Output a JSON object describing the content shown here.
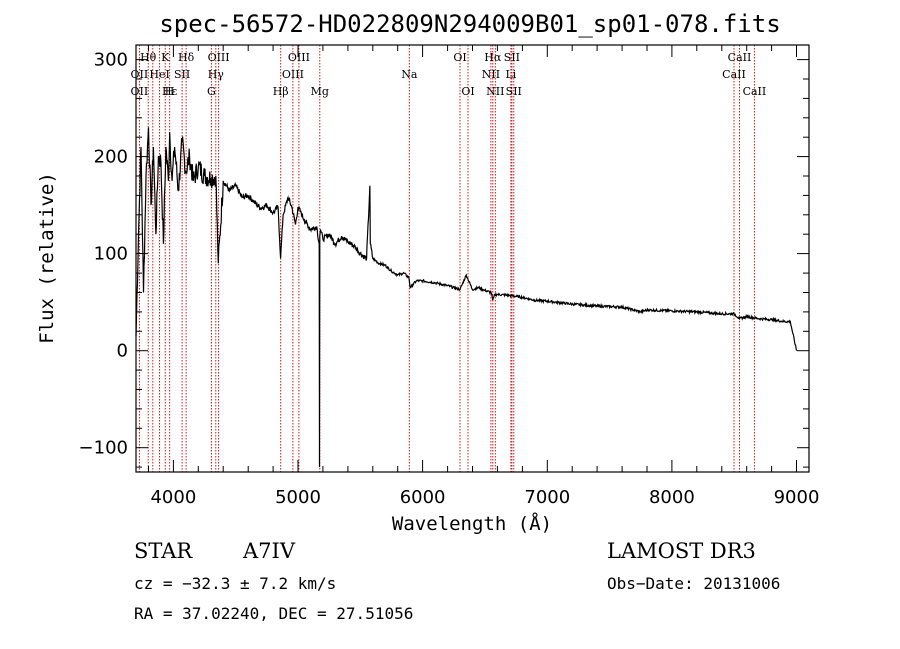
{
  "chart_data": {
    "type": "line",
    "title": "spec-56572-HD022809N294009B01_sp01-078.fits",
    "xlabel": "Wavelength (Å)",
    "ylabel": "Flux (relative)",
    "xlim": [
      3700,
      9100
    ],
    "ylim": [
      -125,
      315
    ],
    "xticks": [
      4000,
      5000,
      6000,
      7000,
      8000,
      9000
    ],
    "yticks": [
      -100,
      0,
      100,
      200,
      300
    ],
    "grid": false,
    "series": [
      {
        "name": "spectrum",
        "x": [
          3700,
          3720,
          3740,
          3760,
          3780,
          3800,
          3820,
          3840,
          3860,
          3880,
          3900,
          3920,
          3940,
          3960,
          3970,
          3990,
          4010,
          4040,
          4070,
          4100,
          4130,
          4160,
          4200,
          4250,
          4300,
          4340,
          4360,
          4400,
          4450,
          4500,
          4550,
          4600,
          4650,
          4700,
          4750,
          4800,
          4840,
          4860,
          4880,
          4920,
          4950,
          4980,
          5000,
          5050,
          5100,
          5150,
          5170,
          5172,
          5175,
          5180,
          5200,
          5250,
          5300,
          5350,
          5400,
          5450,
          5500,
          5550,
          5577,
          5580,
          5600,
          5650,
          5700,
          5750,
          5800,
          5850,
          5890,
          5900,
          5950,
          6000,
          6100,
          6200,
          6300,
          6350,
          6400,
          6450,
          6500,
          6550,
          6563,
          6580,
          6600,
          6700,
          6800,
          6900,
          7000,
          7200,
          7400,
          7600,
          7750,
          7800,
          8000,
          8200,
          8400,
          8500,
          8542,
          8600,
          8700,
          8800,
          8900,
          8950,
          9000
        ],
        "values": [
          15,
          120,
          210,
          60,
          180,
          230,
          150,
          210,
          120,
          200,
          195,
          110,
          210,
          175,
          225,
          175,
          210,
          165,
          215,
          185,
          200,
          175,
          190,
          180,
          178,
          180,
          90,
          175,
          165,
          170,
          158,
          160,
          153,
          147,
          150,
          142,
          148,
          95,
          140,
          158,
          148,
          130,
          148,
          135,
          125,
          128,
          110,
          -120,
          118,
          125,
          115,
          120,
          110,
          118,
          112,
          108,
          100,
          95,
          170,
          110,
          95,
          90,
          88,
          82,
          78,
          80,
          75,
          65,
          72,
          72,
          70,
          67,
          63,
          78,
          63,
          65,
          62,
          60,
          52,
          58,
          58,
          57,
          55,
          52,
          51,
          48,
          46,
          45,
          40,
          42,
          41,
          40,
          38,
          38,
          33,
          35,
          33,
          32,
          30,
          30,
          0
        ]
      }
    ],
    "line_labels": [
      {
        "text": "Hθ",
        "wl": 3798,
        "row": 1
      },
      {
        "text": "OII",
        "wl": 3727,
        "row": 2
      },
      {
        "text": "OII",
        "wl": 3727,
        "row": 3
      },
      {
        "text": "K",
        "wl": 3934,
        "row": 1
      },
      {
        "text": "HeI",
        "wl": 3889,
        "row": 2
      },
      {
        "text": "Hε",
        "wl": 3970,
        "row": 3
      },
      {
        "text": "Hδ",
        "wl": 4102,
        "row": 1
      },
      {
        "text": "SII",
        "wl": 4070,
        "row": 2
      },
      {
        "text": "H",
        "wl": 3969,
        "row": 3
      },
      {
        "text": "OIII",
        "wl": 4363,
        "row": 1
      },
      {
        "text": "Hγ",
        "wl": 4340,
        "row": 2
      },
      {
        "text": "G",
        "wl": 4305,
        "row": 3
      },
      {
        "text": "Hβ",
        "wl": 4861,
        "row": 3
      },
      {
        "text": "OIII",
        "wl": 5007,
        "row": 1
      },
      {
        "text": "OIII",
        "wl": 4959,
        "row": 2
      },
      {
        "text": "Mg",
        "wl": 5175,
        "row": 3
      },
      {
        "text": "Na",
        "wl": 5893,
        "row": 2
      },
      {
        "text": "OI",
        "wl": 6300,
        "row": 1
      },
      {
        "text": "OI",
        "wl": 6364,
        "row": 3
      },
      {
        "text": "Hα",
        "wl": 6563,
        "row": 1
      },
      {
        "text": "SII",
        "wl": 6716,
        "row": 1
      },
      {
        "text": "NII",
        "wl": 6548,
        "row": 2
      },
      {
        "text": "Li",
        "wl": 6708,
        "row": 2
      },
      {
        "text": "NII",
        "wl": 6583,
        "row": 3
      },
      {
        "text": "SII",
        "wl": 6731,
        "row": 3
      },
      {
        "text": "CaII",
        "wl": 8542,
        "row": 1
      },
      {
        "text": "CaII",
        "wl": 8498,
        "row": 2
      },
      {
        "text": "CaII",
        "wl": 8662,
        "row": 3
      }
    ],
    "marker_lines": [
      3727,
      3798,
      3835,
      3889,
      3934,
      3970,
      4070,
      4102,
      4305,
      4340,
      4363,
      4861,
      4959,
      5007,
      5175,
      5893,
      6300,
      6364,
      6548,
      6563,
      6583,
      6708,
      6716,
      6731,
      8498,
      8542,
      8662
    ],
    "colors": {
      "spectrum": "#000000",
      "marker": "#cc0000",
      "axes": "#000000"
    }
  },
  "info": {
    "object_type": "STAR",
    "subclass": "A7IV",
    "survey": "LAMOST DR3",
    "cz": "cz = −32.3 ± 7.2 km/s",
    "obs_date": "Obs−Date: 20131006",
    "coords": "RA =  37.02240, DEC =  27.51056"
  }
}
